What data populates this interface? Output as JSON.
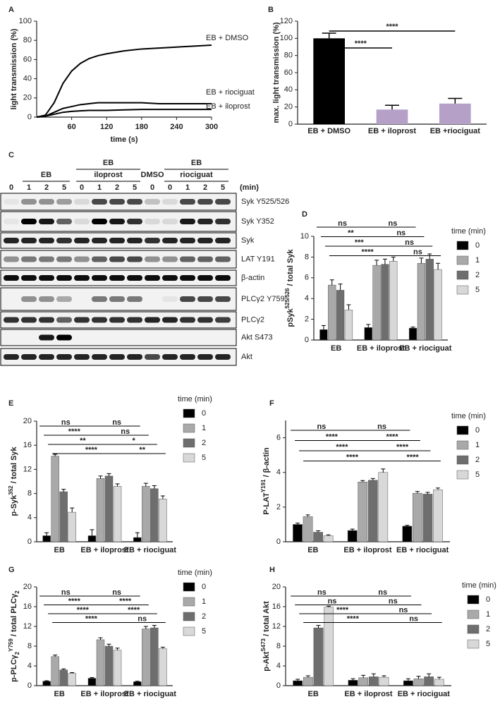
{
  "chart_data": [
    {
      "type": "line",
      "panel": "A",
      "y_label": [
        {
          "text": "light transmission (%)"
        }
      ],
      "x_label": "time (s)",
      "x": [
        0,
        15,
        30,
        45,
        60,
        75,
        90,
        105,
        120,
        150,
        180,
        210,
        240,
        270,
        300
      ],
      "xlim": [
        0,
        300
      ],
      "xticks": [
        60,
        120,
        180,
        240,
        300
      ],
      "ylim": [
        0,
        100
      ],
      "yticks": [
        0,
        20,
        40,
        60,
        80,
        100
      ],
      "series": [
        {
          "name": "EB + DMSO",
          "color": "#000000",
          "values": [
            0,
            2,
            15,
            35,
            48,
            56,
            61,
            64,
            66,
            69,
            71,
            72,
            73,
            74,
            75
          ]
        },
        {
          "name": "EB + riociguat",
          "color": "#000000",
          "values": [
            0,
            1,
            5,
            9,
            11,
            13,
            14,
            15,
            15,
            15,
            15,
            14,
            14,
            14,
            14
          ]
        },
        {
          "name": "EB + iloprost",
          "color": "#000000",
          "values": [
            0,
            1,
            3,
            5,
            6,
            6.5,
            7,
            7,
            7,
            7.5,
            8,
            8,
            8,
            8,
            8
          ]
        }
      ]
    },
    {
      "type": "bar",
      "panel": "B",
      "y_label": [
        {
          "text": "max. light transmission (%)"
        }
      ],
      "categories": [
        "EB + DMSO",
        "EB + iloprost",
        "EB +riociguat"
      ],
      "values": [
        100,
        17,
        24
      ],
      "errors": [
        6,
        5,
        6
      ],
      "colors": [
        "#000000",
        "#b5a0c8",
        "#b5a0c8"
      ],
      "ylim": [
        0,
        120
      ],
      "yticks": [
        0,
        20,
        40,
        60,
        80,
        100,
        120
      ],
      "annotations": [
        "****",
        "****"
      ]
    },
    {
      "type": "grouped",
      "panel": "D",
      "y_label": [
        {
          "text": "pSyk"
        },
        {
          "text": "525/526",
          "sup": true
        },
        {
          "text": " / total Syk"
        }
      ],
      "categories": [
        "EB",
        "EB + iloprost",
        "EB + riociguat"
      ],
      "legend_title": "time (min)",
      "ylim": [
        0,
        10
      ],
      "yticks": [
        0,
        2,
        4,
        6,
        8,
        10
      ],
      "series": [
        {
          "name": "0",
          "color": "#000000",
          "values": [
            1.0,
            1.2,
            1.15
          ],
          "errors": [
            0.4,
            0.3,
            0.1
          ]
        },
        {
          "name": "1",
          "color": "#a9a9a9",
          "values": [
            5.3,
            7.2,
            7.4
          ],
          "errors": [
            0.5,
            0.5,
            0.5
          ]
        },
        {
          "name": "2",
          "color": "#6e6e6e",
          "values": [
            4.8,
            7.3,
            7.8
          ],
          "errors": [
            0.6,
            0.5,
            0.5
          ]
        },
        {
          "name": "5",
          "color": "#d8d8d8",
          "values": [
            2.9,
            7.6,
            6.8
          ],
          "errors": [
            0.5,
            0.4,
            0.6
          ]
        }
      ],
      "annotations": [
        "ns",
        "ns",
        "**",
        "ns",
        "***",
        "ns",
        "****",
        "ns"
      ]
    },
    {
      "type": "grouped",
      "panel": "E",
      "y_label": [
        {
          "text": "p-Syk"
        },
        {
          "text": "352",
          "sup": true
        },
        {
          "text": " / total Syk"
        }
      ],
      "categories": [
        "EB",
        "EB + iloprost",
        "EB + riociguat"
      ],
      "legend_title": "time (min)",
      "ylim": [
        0,
        20
      ],
      "yticks": [
        0,
        4,
        8,
        12,
        16,
        20
      ],
      "series": [
        {
          "name": "0",
          "color": "#000000",
          "values": [
            1.0,
            1.0,
            0.7
          ],
          "errors": [
            0.5,
            1.0,
            0.8
          ]
        },
        {
          "name": "1",
          "color": "#a9a9a9",
          "values": [
            14.2,
            10.5,
            9.2
          ],
          "errors": [
            0.3,
            0.4,
            0.5
          ]
        },
        {
          "name": "2",
          "color": "#6e6e6e",
          "values": [
            8.3,
            10.9,
            8.8
          ],
          "errors": [
            0.4,
            0.4,
            0.5
          ]
        },
        {
          "name": "5",
          "color": "#d8d8d8",
          "values": [
            4.9,
            9.2,
            7.1
          ],
          "errors": [
            0.7,
            0.4,
            0.5
          ]
        }
      ],
      "annotations": [
        "ns",
        "ns",
        "****",
        "ns",
        "**",
        "*",
        "****",
        "**"
      ]
    },
    {
      "type": "grouped",
      "panel": "F",
      "y_label": [
        {
          "text": "P-LAT"
        },
        {
          "text": "Y191",
          "sup": true
        },
        {
          "text": " / β-actin"
        }
      ],
      "categories": [
        "EB",
        "EB + iloprost",
        "EB + riociguat"
      ],
      "legend_title": "time (min)",
      "ylim": [
        0,
        7
      ],
      "yticks": [
        0,
        2,
        4,
        6
      ],
      "series": [
        {
          "name": "0",
          "color": "#000000",
          "values": [
            1.0,
            0.65,
            0.9
          ],
          "errors": [
            0.08,
            0.08,
            0.05
          ]
        },
        {
          "name": "1",
          "color": "#a9a9a9",
          "values": [
            1.45,
            3.45,
            2.8
          ],
          "errors": [
            0.1,
            0.08,
            0.1
          ]
        },
        {
          "name": "2",
          "color": "#6e6e6e",
          "values": [
            0.55,
            3.55,
            2.75
          ],
          "errors": [
            0.08,
            0.1,
            0.1
          ]
        },
        {
          "name": "5",
          "color": "#d8d8d8",
          "values": [
            0.35,
            4.0,
            3.0
          ],
          "errors": [
            0.05,
            0.2,
            0.1
          ]
        }
      ],
      "annotations": [
        "ns",
        "ns",
        "****",
        "****",
        "****",
        "****",
        "****",
        "****"
      ]
    },
    {
      "type": "grouped",
      "panel": "G",
      "y_label": [
        {
          "text": "p-PLCγ"
        },
        {
          "text": "2",
          "sub": true
        },
        {
          "text": "Y759",
          "sup": true
        },
        {
          "text": " / total PLCγ"
        },
        {
          "text": "2",
          "sub": true
        }
      ],
      "categories": [
        "EB",
        "EB + iloprost",
        "EB + riociguat"
      ],
      "legend_title": "time (min)",
      "ylim": [
        0,
        20
      ],
      "yticks": [
        0,
        4,
        8,
        12,
        16,
        20
      ],
      "series": [
        {
          "name": "0",
          "color": "#000000",
          "values": [
            0.9,
            1.5,
            0.8
          ],
          "errors": [
            0.1,
            0.15,
            0.1
          ]
        },
        {
          "name": "1",
          "color": "#a9a9a9",
          "values": [
            5.9,
            9.3,
            11.5
          ],
          "errors": [
            0.3,
            0.4,
            0.5
          ]
        },
        {
          "name": "2",
          "color": "#6e6e6e",
          "values": [
            3.2,
            8.0,
            11.7
          ],
          "errors": [
            0.2,
            0.4,
            0.5
          ]
        },
        {
          "name": "5",
          "color": "#d8d8d8",
          "values": [
            2.5,
            7.2,
            7.5
          ],
          "errors": [
            0.15,
            0.4,
            0.3
          ]
        }
      ],
      "annotations": [
        "ns",
        "ns",
        "****",
        "****",
        "****",
        "****",
        "****",
        "ns"
      ]
    },
    {
      "type": "grouped",
      "panel": "H",
      "y_label": [
        {
          "text": "p-Akt"
        },
        {
          "text": "S473",
          "sup": true
        },
        {
          "text": " / total Akt"
        }
      ],
      "categories": [
        "EB",
        "EB + iloprost",
        "EB + riociguat"
      ],
      "legend_title": "time (min)",
      "ylim": [
        0,
        20
      ],
      "yticks": [
        0,
        4,
        8,
        12,
        16,
        20
      ],
      "series": [
        {
          "name": "0",
          "color": "#000000",
          "values": [
            1.0,
            1.1,
            1.0
          ],
          "errors": [
            0.3,
            0.3,
            0.4
          ]
        },
        {
          "name": "1",
          "color": "#a9a9a9",
          "values": [
            1.7,
            1.6,
            1.4
          ],
          "errors": [
            0.3,
            0.5,
            0.5
          ]
        },
        {
          "name": "2",
          "color": "#6e6e6e",
          "values": [
            11.7,
            1.8,
            1.8
          ],
          "errors": [
            0.5,
            0.6,
            0.6
          ]
        },
        {
          "name": "5",
          "color": "#d8d8d8",
          "values": [
            15.9,
            1.7,
            1.3
          ],
          "errors": [
            0.2,
            0.3,
            0.4
          ]
        }
      ],
      "annotations": [
        "ns",
        "ns",
        "ns",
        "ns",
        "****",
        "ns",
        "****",
        "ns"
      ]
    }
  ],
  "blot": {
    "panel": "C",
    "groups": [
      {
        "lines": [
          "EB"
        ]
      },
      {
        "lines": [
          "EB",
          "iloprost"
        ]
      },
      {
        "lines": [
          "DMSO"
        ]
      },
      {
        "lines": [
          "EB",
          "riociguat"
        ]
      }
    ],
    "lanes": [
      "0",
      "1",
      "2",
      "5",
      "0",
      "1",
      "2",
      "5",
      "0",
      "0",
      "1",
      "2",
      "5"
    ],
    "unit": "(min)",
    "rows": [
      "Syk Y525/526",
      "Syk Y352",
      "Syk",
      "LAT Y191",
      "β-actin",
      "PLCγ2 Y759",
      "PLCγ2",
      "Akt S473",
      "Akt"
    ]
  }
}
